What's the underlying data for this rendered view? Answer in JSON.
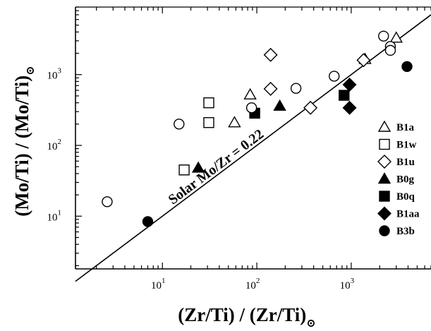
{
  "chart_data": {
    "type": "scatter",
    "title": "",
    "xlabel": "(Zr/Ti) / (Zr/Ti)",
    "xlabel_sub": "⊙",
    "ylabel": "(Mo/Ti) / (Mo/Ti)",
    "ylabel_sub": "⊙",
    "xscale": "log",
    "yscale": "log",
    "xlim": [
      1.2,
      7000
    ],
    "ylim": [
      1.8,
      9000
    ],
    "xticks": [
      {
        "value": 10,
        "base": "10",
        "exp": "1"
      },
      {
        "value": 100,
        "base": "10",
        "exp": "2"
      },
      {
        "value": 1000,
        "base": "10",
        "exp": "3"
      }
    ],
    "yticks": [
      {
        "value": 10,
        "base": "10",
        "exp": "1"
      },
      {
        "value": 100,
        "base": "10",
        "exp": "2"
      },
      {
        "value": 1000,
        "base": "10",
        "exp": "3"
      }
    ],
    "grid": false,
    "legend_position": "right",
    "annotation": {
      "text": "Solar Mo/Zr = 0.22"
    },
    "reference_line": {
      "slope": 1,
      "intercept": 0,
      "x": [
        1.2,
        7000
      ]
    },
    "series": [
      {
        "name": "B1a",
        "marker": "triangle",
        "filled": false,
        "x": [
          85,
          58,
          1400,
          3000
        ],
        "y": [
          520,
          210,
          1650,
          3300
        ]
      },
      {
        "name": "B1w",
        "marker": "square",
        "filled": false,
        "x": [
          31,
          31,
          17
        ],
        "y": [
          400,
          210,
          45
        ]
      },
      {
        "name": "B1u",
        "marker": "diamond",
        "filled": false,
        "x": [
          140,
          140,
          370,
          1350
        ],
        "y": [
          1900,
          630,
          340,
          1600
        ]
      },
      {
        "name": "B0g",
        "marker": "triangle",
        "filled": true,
        "x": [
          24,
          175
        ],
        "y": [
          48,
          360
        ]
      },
      {
        "name": "B0q",
        "marker": "square",
        "filled": true,
        "x": [
          95,
          840
        ],
        "y": [
          285,
          510
        ]
      },
      {
        "name": "B1aa",
        "marker": "diamond",
        "filled": true,
        "x": [
          960,
          960
        ],
        "y": [
          720,
          340
        ]
      },
      {
        "name": "B3b",
        "marker": "circle",
        "filled": true,
        "x": [
          7,
          3900
        ],
        "y": [
          8.4,
          1300
        ]
      },
      {
        "name": "",
        "marker": "circle",
        "filled": false,
        "x": [
          2.6,
          15,
          88,
          260,
          660,
          2200,
          2600,
          2600
        ],
        "y": [
          16,
          200,
          340,
          640,
          950,
          3500,
          2500,
          2200
        ]
      }
    ]
  }
}
